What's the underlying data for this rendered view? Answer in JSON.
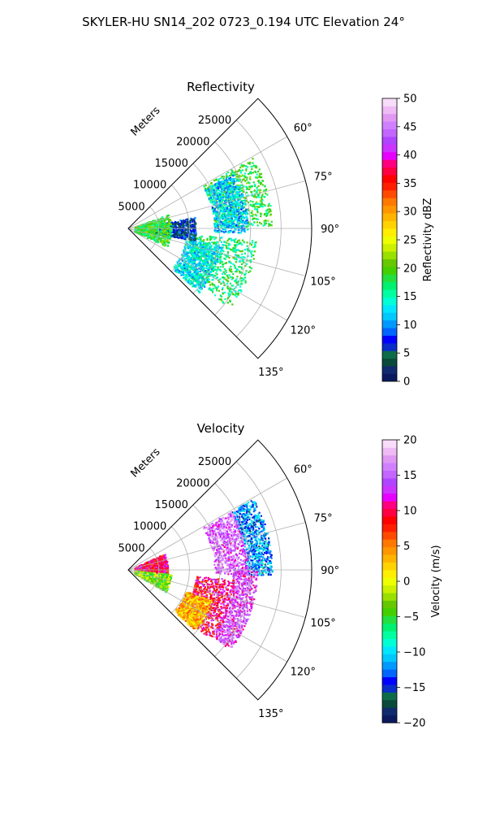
{
  "figure": {
    "title": "SKYLER-HU  SN14_202  0723_0.194 UTC Elevation 24°"
  },
  "chart_data": [
    {
      "type": "heatmap",
      "subtype": "polar-sector",
      "title": "Reflectivity",
      "radial_axis_label": "Meters",
      "radial_ticks": [
        5000,
        10000,
        15000,
        20000,
        25000
      ],
      "radial_tick_labels": [
        "5000",
        "10000",
        "15000",
        "20000",
        "25000"
      ],
      "radial_range": [
        0,
        30000
      ],
      "azimuth_range_deg": [
        45,
        135
      ],
      "azimuth_ticks_deg": [
        60,
        75,
        90,
        105,
        120,
        135
      ],
      "azimuth_tick_labels": [
        "60°",
        "75°",
        "90°",
        "105°",
        "120°",
        "135°"
      ],
      "grid": true,
      "colorbar": {
        "label": "Reflectivity dBZ",
        "range": [
          0,
          50
        ],
        "ticks": [
          0,
          5,
          10,
          15,
          20,
          25,
          30,
          35,
          40,
          45,
          50
        ],
        "tick_labels": [
          "0",
          "5",
          "10",
          "15",
          "20",
          "25",
          "30",
          "35",
          "40",
          "45",
          "50"
        ],
        "colors": [
          "#0b1a5e",
          "#102a6e",
          "#0a4a3a",
          "#0e6b4a",
          "#0a2cc8",
          "#0000ff",
          "#0066ff",
          "#0099ff",
          "#00c8ff",
          "#00e6ff",
          "#00ffd5",
          "#00ffa0",
          "#00f070",
          "#22e040",
          "#44d000",
          "#66c800",
          "#99e000",
          "#ccf000",
          "#eeff00",
          "#ffee00",
          "#ffd200",
          "#ffb400",
          "#ff9600",
          "#ff7800",
          "#ff4b00",
          "#ff1e00",
          "#ff0000",
          "#ff0040",
          "#ff0080",
          "#e600ff",
          "#cc33ff",
          "#b044ff",
          "#c266ff",
          "#d080ff",
          "#e099f2",
          "#eebbf5",
          "#f8ddfa"
        ]
      },
      "regions": [
        {
          "r_min": 14000,
          "r_max": 23500,
          "az_min": 60,
          "az_max": 89,
          "value": 18
        },
        {
          "r_min": 14000,
          "r_max": 19500,
          "az_min": 62,
          "az_max": 92,
          "value": 12
        },
        {
          "r_min": 10500,
          "r_max": 21000,
          "az_min": 95,
          "az_max": 128,
          "value": 17
        },
        {
          "r_min": 9500,
          "r_max": 15500,
          "az_min": 100,
          "az_max": 132,
          "value": 13
        },
        {
          "r_min": 4000,
          "r_max": 11000,
          "az_min": 80,
          "az_max": 100,
          "value": 6
        },
        {
          "r_min": 1000,
          "r_max": 7000,
          "az_min": 70,
          "az_max": 115,
          "value": 19
        }
      ]
    },
    {
      "type": "heatmap",
      "subtype": "polar-sector",
      "title": "Velocity",
      "radial_axis_label": "Meters",
      "radial_ticks": [
        5000,
        10000,
        15000,
        20000,
        25000
      ],
      "radial_tick_labels": [
        "5000",
        "10000",
        "15000",
        "20000",
        "25000"
      ],
      "radial_range": [
        0,
        30000
      ],
      "azimuth_range_deg": [
        45,
        135
      ],
      "azimuth_ticks_deg": [
        60,
        75,
        90,
        105,
        120,
        135
      ],
      "azimuth_tick_labels": [
        "60°",
        "75°",
        "90°",
        "105°",
        "120°",
        "135°"
      ],
      "grid": true,
      "colorbar": {
        "label": "Velocity (m/s)",
        "range": [
          -20,
          20
        ],
        "ticks": [
          -20,
          -15,
          -10,
          -5,
          0,
          5,
          10,
          15,
          20
        ],
        "tick_labels": [
          "−20",
          "−15",
          "−10",
          "−5",
          "0",
          "5",
          "10",
          "15",
          "20"
        ],
        "colors": [
          "#0b1a5e",
          "#102a6e",
          "#0a4a3a",
          "#0e6b4a",
          "#0a2cc8",
          "#0000ff",
          "#0066ff",
          "#0099ff",
          "#00c8ff",
          "#00e6ff",
          "#00ffd5",
          "#00ffa0",
          "#00f070",
          "#22e040",
          "#44d000",
          "#66c800",
          "#99e000",
          "#ccf000",
          "#eeff00",
          "#ffee00",
          "#ffd200",
          "#ffb400",
          "#ff9600",
          "#ff7800",
          "#ff4b00",
          "#ff1e00",
          "#ff0000",
          "#ff0040",
          "#ff0080",
          "#e600ff",
          "#cc33ff",
          "#b044ff",
          "#c266ff",
          "#d080ff",
          "#e099f2",
          "#eebbf5",
          "#f8ddfa"
        ]
      },
      "regions": [
        {
          "r_min": 19000,
          "r_max": 23500,
          "az_min": 60,
          "az_max": 92,
          "value": -12
        },
        {
          "r_min": 14000,
          "r_max": 19500,
          "az_min": 60,
          "az_max": 92,
          "value": 15
        },
        {
          "r_min": 17000,
          "r_max": 21000,
          "az_min": 90,
          "az_max": 128,
          "value": 14
        },
        {
          "r_min": 11000,
          "r_max": 17500,
          "az_min": 95,
          "az_max": 130,
          "value": 10
        },
        {
          "r_min": 10000,
          "r_max": 14500,
          "az_min": 110,
          "az_max": 132,
          "value": 3
        },
        {
          "r_min": 1000,
          "r_max": 6500,
          "az_min": 65,
          "az_max": 95,
          "value": 10
        },
        {
          "r_min": 1000,
          "r_max": 7000,
          "az_min": 95,
          "az_max": 120,
          "value": -3
        }
      ]
    }
  ]
}
